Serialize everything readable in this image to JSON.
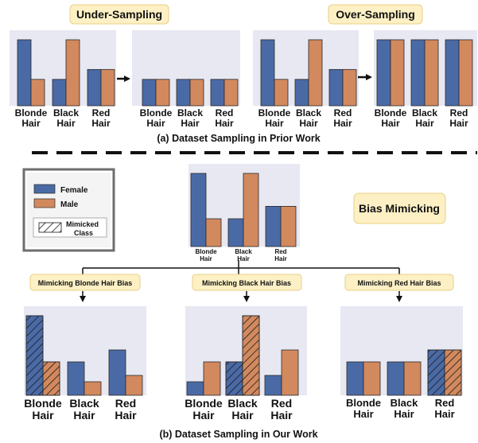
{
  "colors": {
    "female": "#4a6aa6",
    "male": "#d2895e",
    "panel": "#e7e8f2",
    "header": "#fdf0c4",
    "edge": "#2a2a2a"
  },
  "top": {
    "under_title": "Under-Sampling",
    "over_title": "Over-Sampling",
    "caption": "(a) Dataset Sampling in Prior Work"
  },
  "bottom": {
    "bias_mimicking_label": "Bias Mimicking",
    "caption": "(b) Dataset Sampling in Our Work",
    "branch_labels": [
      "Mimicking Blonde Hair Bias",
      "Mimicking Black Hair Bias",
      "Mimicking Red Hair Bias"
    ]
  },
  "legend": {
    "items": [
      {
        "label": "Female",
        "color": "female"
      },
      {
        "label": "Male",
        "color": "male"
      }
    ],
    "mimicked_label_line1": "Mimicked",
    "mimicked_label_line2": "Class"
  },
  "chart_data": [
    {
      "id": "orig-top",
      "type": "bar",
      "categories": [
        "Blonde Hair",
        "Black Hair",
        "Red Hair"
      ],
      "series": [
        {
          "name": "Female",
          "values": [
            1.0,
            0.4,
            0.55
          ]
        },
        {
          "name": "Male",
          "values": [
            0.4,
            1.0,
            0.55
          ]
        }
      ]
    },
    {
      "id": "under",
      "type": "bar",
      "categories": [
        "Blonde Hair",
        "Black Hair",
        "Red Hair"
      ],
      "series": [
        {
          "name": "Female",
          "values": [
            0.4,
            0.4,
            0.4
          ]
        },
        {
          "name": "Male",
          "values": [
            0.4,
            0.4,
            0.4
          ]
        }
      ]
    },
    {
      "id": "orig-top2",
      "type": "bar",
      "categories": [
        "Blonde Hair",
        "Black Hair",
        "Red Hair"
      ],
      "series": [
        {
          "name": "Female",
          "values": [
            1.0,
            0.4,
            0.55
          ]
        },
        {
          "name": "Male",
          "values": [
            0.4,
            1.0,
            0.55
          ]
        }
      ]
    },
    {
      "id": "over",
      "type": "bar",
      "categories": [
        "Blonde Hair",
        "Black Hair",
        "Red Hair"
      ],
      "series": [
        {
          "name": "Female",
          "values": [
            1.0,
            1.0,
            1.0
          ]
        },
        {
          "name": "Male",
          "values": [
            1.0,
            1.0,
            1.0
          ]
        }
      ]
    },
    {
      "id": "orig-bottom",
      "type": "bar",
      "categories": [
        "Blonde Hair",
        "Black Hair",
        "Red Hair"
      ],
      "series": [
        {
          "name": "Female",
          "values": [
            1.0,
            0.38,
            0.55
          ]
        },
        {
          "name": "Male",
          "values": [
            0.38,
            1.0,
            0.55
          ]
        }
      ]
    },
    {
      "id": "mimic-blonde",
      "type": "bar",
      "categories": [
        "Blonde Hair",
        "Black Hair",
        "Red Hair"
      ],
      "series": [
        {
          "name": "Female",
          "values": [
            1.0,
            0.42,
            0.57
          ]
        },
        {
          "name": "Male",
          "values": [
            0.42,
            0.17,
            0.25
          ]
        }
      ],
      "mimicked_category": "Blonde Hair"
    },
    {
      "id": "mimic-black",
      "type": "bar",
      "categories": [
        "Blonde Hair",
        "Black Hair",
        "Red Hair"
      ],
      "series": [
        {
          "name": "Female",
          "values": [
            0.17,
            0.42,
            0.25
          ]
        },
        {
          "name": "Male",
          "values": [
            0.42,
            1.0,
            0.57
          ]
        }
      ],
      "mimicked_category": "Black Hair"
    },
    {
      "id": "mimic-red",
      "type": "bar",
      "categories": [
        "Blonde Hair",
        "Black Hair",
        "Red Hair"
      ],
      "series": [
        {
          "name": "Female",
          "values": [
            0.42,
            0.42,
            0.57
          ]
        },
        {
          "name": "Male",
          "values": [
            0.42,
            0.42,
            0.57
          ]
        }
      ],
      "mimicked_category": "Red Hair"
    }
  ]
}
